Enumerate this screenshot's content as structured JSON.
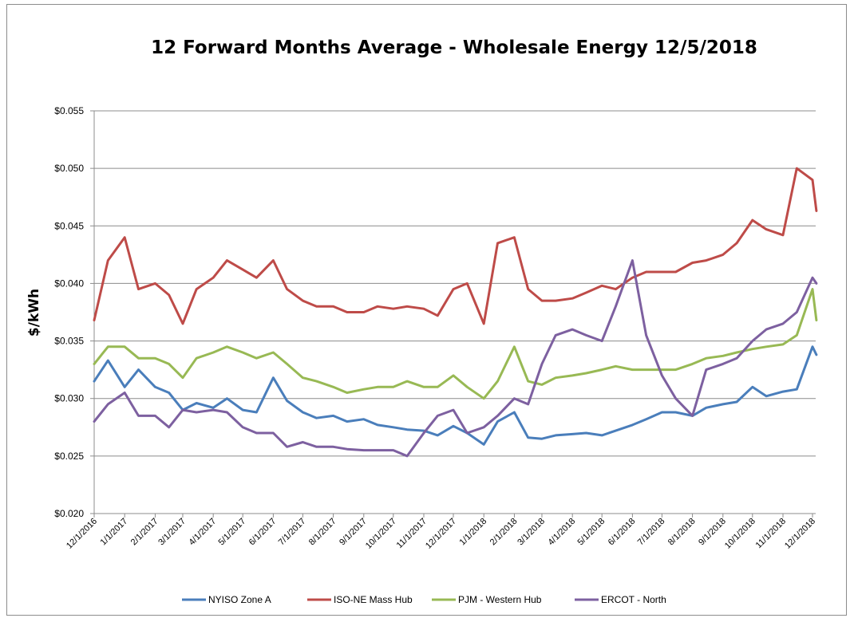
{
  "chart_data": {
    "type": "line",
    "title": "12 Forward Months Average - Wholesale Energy 12/5/2018",
    "xlabel": "",
    "ylabel": "$/kWh",
    "ylim": [
      0.02,
      0.055
    ],
    "yticks": [
      "$0.020",
      "$0.025",
      "$0.030",
      "$0.035",
      "$0.040",
      "$0.045",
      "$0.050",
      "$0.055"
    ],
    "ytick_values": [
      0.02,
      0.025,
      0.03,
      0.035,
      0.04,
      0.045,
      0.05,
      0.055
    ],
    "xticks": [
      "12/1/2016",
      "1/1/2017",
      "2/1/2017",
      "3/1/2017",
      "4/1/2017",
      "5/1/2017",
      "6/1/2017",
      "7/1/2017",
      "8/1/2017",
      "9/1/2017",
      "10/1/2017",
      "11/1/2017",
      "12/1/2017",
      "1/1/2018",
      "2/1/2018",
      "3/1/2018",
      "4/1/2018",
      "5/1/2018",
      "6/1/2018",
      "7/1/2018",
      "8/1/2018",
      "9/1/2018",
      "10/1/2018",
      "11/1/2018",
      "12/1/2018"
    ],
    "grid": true,
    "legend_position": "bottom",
    "x": [
      "12/1/2016",
      "12/15/2016",
      "1/1/2017",
      "1/15/2017",
      "2/1/2017",
      "2/15/2017",
      "3/1/2017",
      "3/15/2017",
      "4/1/2017",
      "4/15/2017",
      "5/1/2017",
      "5/15/2017",
      "6/1/2017",
      "6/15/2017",
      "7/1/2017",
      "7/15/2017",
      "8/1/2017",
      "8/15/2017",
      "9/1/2017",
      "9/15/2017",
      "10/1/2017",
      "10/15/2017",
      "11/1/2017",
      "11/15/2017",
      "12/1/2017",
      "12/15/2017",
      "1/1/2018",
      "1/15/2018",
      "2/1/2018",
      "2/15/2018",
      "3/1/2018",
      "3/15/2018",
      "4/1/2018",
      "4/15/2018",
      "5/1/2018",
      "5/15/2018",
      "6/1/2018",
      "6/15/2018",
      "7/1/2018",
      "7/15/2018",
      "8/1/2018",
      "8/15/2018",
      "9/1/2018",
      "9/15/2018",
      "10/1/2018",
      "10/15/2018",
      "11/1/2018",
      "11/15/2018",
      "12/1/2018",
      "12/5/2018"
    ],
    "series": [
      {
        "name": "NYISO Zone A",
        "color": "#4a7ebb",
        "values": [
          0.0315,
          0.0333,
          0.031,
          0.0325,
          0.031,
          0.0305,
          0.029,
          0.0296,
          0.0292,
          0.03,
          0.029,
          0.0288,
          0.0318,
          0.0298,
          0.0288,
          0.0283,
          0.0285,
          0.028,
          0.0282,
          0.0277,
          0.0275,
          0.0273,
          0.0272,
          0.0268,
          0.0276,
          0.027,
          0.026,
          0.028,
          0.0288,
          0.0266,
          0.0265,
          0.0268,
          0.0269,
          0.027,
          0.0268,
          0.0272,
          0.0277,
          0.0282,
          0.0288,
          0.0288,
          0.0285,
          0.0292,
          0.0295,
          0.0297,
          0.031,
          0.0302,
          0.0306,
          0.0308,
          0.0345,
          0.0338
        ]
      },
      {
        "name": "ISO-NE Mass Hub",
        "color": "#be4b48",
        "values": [
          0.0368,
          0.042,
          0.044,
          0.0395,
          0.04,
          0.039,
          0.0365,
          0.0395,
          0.0405,
          0.042,
          0.0412,
          0.0405,
          0.042,
          0.0395,
          0.0385,
          0.038,
          0.038,
          0.0375,
          0.0375,
          0.038,
          0.0378,
          0.038,
          0.0378,
          0.0372,
          0.0395,
          0.04,
          0.0365,
          0.0435,
          0.044,
          0.0395,
          0.0385,
          0.0385,
          0.0387,
          0.0392,
          0.0398,
          0.0395,
          0.0405,
          0.041,
          0.041,
          0.041,
          0.0418,
          0.042,
          0.0425,
          0.0435,
          0.0455,
          0.0447,
          0.0442,
          0.05,
          0.049,
          0.0463
        ]
      },
      {
        "name": "PJM - Western Hub",
        "color": "#98b954",
        "values": [
          0.033,
          0.0345,
          0.0345,
          0.0335,
          0.0335,
          0.033,
          0.0318,
          0.0335,
          0.034,
          0.0345,
          0.034,
          0.0335,
          0.034,
          0.033,
          0.0318,
          0.0315,
          0.031,
          0.0305,
          0.0308,
          0.031,
          0.031,
          0.0315,
          0.031,
          0.031,
          0.032,
          0.031,
          0.03,
          0.0315,
          0.0345,
          0.0315,
          0.0312,
          0.0318,
          0.032,
          0.0322,
          0.0325,
          0.0328,
          0.0325,
          0.0325,
          0.0325,
          0.0325,
          0.033,
          0.0335,
          0.0337,
          0.034,
          0.0343,
          0.0345,
          0.0347,
          0.0355,
          0.0395,
          0.0368
        ]
      },
      {
        "name": "ERCOT - North",
        "color": "#7d60a0",
        "values": [
          0.028,
          0.0295,
          0.0305,
          0.0285,
          0.0285,
          0.0275,
          0.029,
          0.0288,
          0.029,
          0.0288,
          0.0275,
          0.027,
          0.027,
          0.0258,
          0.0262,
          0.0258,
          0.0258,
          0.0256,
          0.0255,
          0.0255,
          0.0255,
          0.025,
          0.027,
          0.0285,
          0.029,
          0.027,
          0.0275,
          0.0285,
          0.03,
          0.0295,
          0.033,
          0.0355,
          0.036,
          0.0355,
          0.035,
          0.038,
          0.042,
          0.0355,
          0.032,
          0.03,
          0.0285,
          0.0325,
          0.033,
          0.0335,
          0.035,
          0.036,
          0.0365,
          0.0375,
          0.0405,
          0.04
        ]
      }
    ]
  }
}
